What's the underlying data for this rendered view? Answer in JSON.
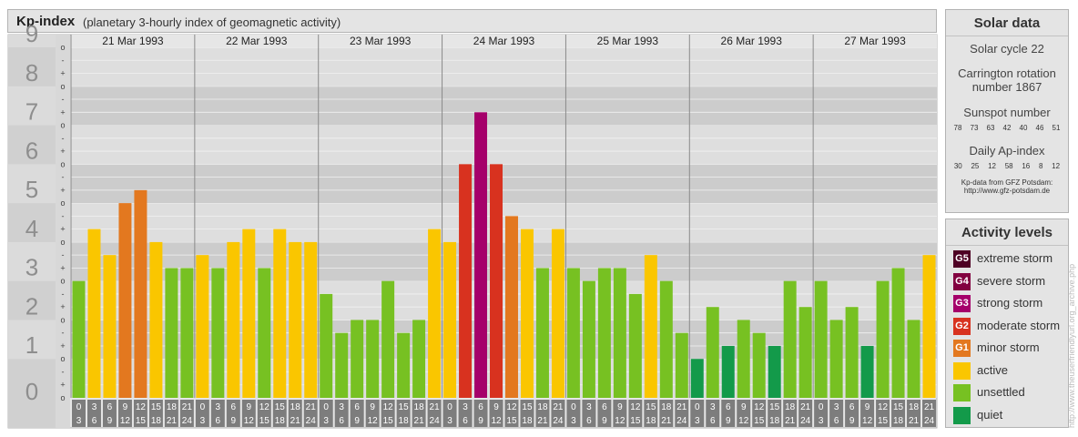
{
  "header": {
    "title": "Kp-index",
    "subtitle": "(planetary 3-hourly index of geomagnetic activity)"
  },
  "chart_data": {
    "type": "bar",
    "ylim": [
      0,
      9
    ],
    "y_major_ticks": [
      "0",
      "1",
      "2",
      "3",
      "4",
      "5",
      "6",
      "7",
      "8",
      "9"
    ],
    "y_minor_tick_labels": [
      "o",
      "+",
      "-"
    ],
    "days": [
      "21 Mar 1993",
      "22 Mar 1993",
      "23 Mar 1993",
      "24 Mar 1993",
      "25 Mar 1993",
      "26 Mar 1993",
      "27 Mar 1993"
    ],
    "interval_labels": [
      [
        "0",
        "3"
      ],
      [
        "3",
        "6"
      ],
      [
        "6",
        "9"
      ],
      [
        "9",
        "12"
      ],
      [
        "12",
        "15"
      ],
      [
        "15",
        "18"
      ],
      [
        "18",
        "21"
      ],
      [
        "21",
        "24"
      ]
    ],
    "values": [
      3,
      4.333,
      3.667,
      5,
      5.333,
      4,
      3.333,
      3.333,
      3.667,
      3.333,
      4,
      4.333,
      3.333,
      4.333,
      4,
      4,
      2.667,
      1.667,
      2,
      2,
      3,
      1.667,
      2,
      4.333,
      4,
      6,
      7.333,
      6,
      4.667,
      4.333,
      3.333,
      4.333,
      3.333,
      3,
      3.333,
      3.333,
      2.667,
      3.667,
      3,
      1.667,
      1,
      2.333,
      1.333,
      2,
      1.667,
      1.333,
      3,
      2.333,
      3,
      2,
      2.333,
      1.333,
      3,
      3.333,
      2,
      3.667
    ],
    "colors_by_level": {
      "quiet": "#139a4a",
      "unsettled": "#77c122",
      "active": "#fac600",
      "minor_storm": "#e3781f",
      "moderate_storm": "#d8321f",
      "strong_storm": "#a5006a",
      "severe_storm": "#820040",
      "extreme_storm": "#4e0024"
    },
    "grid": true
  },
  "sidebar": {
    "solar": {
      "heading": "Solar data",
      "cycle": "Solar cycle 22",
      "carrington": "Carrington rotation number 1867",
      "sunspot_heading": "Sunspot number",
      "sunspots": [
        "78",
        "73",
        "63",
        "42",
        "40",
        "46",
        "51"
      ],
      "ap_heading": "Daily Ap-index",
      "ap": [
        "30",
        "25",
        "12",
        "58",
        "16",
        "8",
        "12"
      ],
      "source_line1": "Kp-data from GFZ Potsdam:",
      "source_line2": "http://www.gfz-potsdam.de"
    },
    "legend": {
      "heading": "Activity levels",
      "items": [
        {
          "badge": "G5",
          "label": "extreme storm",
          "color": "#4e0024"
        },
        {
          "badge": "G4",
          "label": "severe storm",
          "color": "#820040"
        },
        {
          "badge": "G3",
          "label": "strong storm",
          "color": "#a5006a"
        },
        {
          "badge": "G2",
          "label": "moderate storm",
          "color": "#d8321f"
        },
        {
          "badge": "G1",
          "label": "minor storm",
          "color": "#e3781f"
        },
        {
          "badge": "",
          "label": "active",
          "color": "#fac600"
        },
        {
          "badge": "",
          "label": "unsettled",
          "color": "#77c122"
        },
        {
          "badge": "",
          "label": "quiet",
          "color": "#139a4a"
        }
      ]
    }
  },
  "credit": "http://www.theuserfriendlyurl.org_archive.php"
}
